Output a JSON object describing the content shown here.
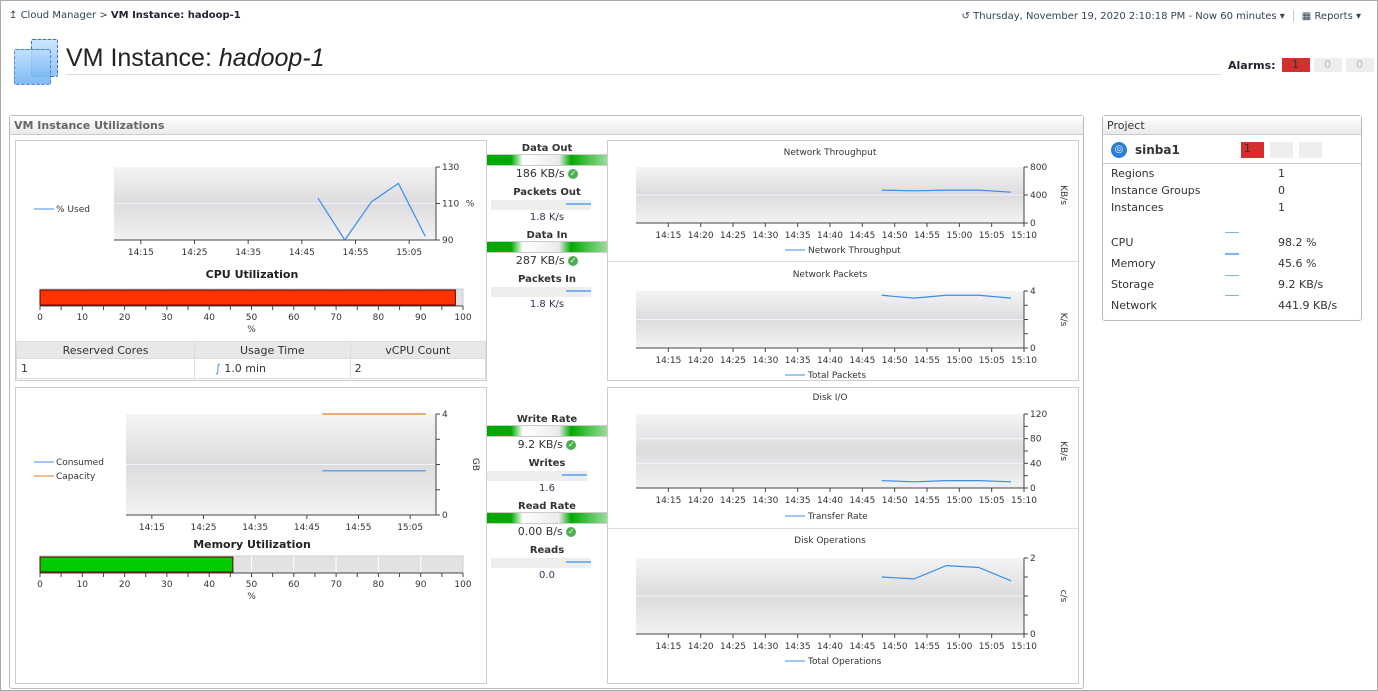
{
  "breadcrumb": {
    "parent": "Cloud Manager",
    "current": "VM Instance: hadoop-1"
  },
  "header": {
    "time_range": "Thursday, November 19, 2020 2:10:18 PM - Now 60 minutes",
    "reports": "Reports",
    "title_prefix": "VM Instance:",
    "title_name": "hadoop-1",
    "alarms_label": "Alarms:",
    "alarms": [
      "1",
      "0",
      "0"
    ]
  },
  "utilizations": {
    "title": "VM Instance Utilizations",
    "cpu": {
      "title": "CPU Utilization",
      "legend": "% Used",
      "gauge_value": 98.2,
      "gauge_unit": "%",
      "gauge_color": "#ff3300",
      "table": {
        "headers": [
          "Reserved Cores",
          "Usage Time",
          "vCPU Count"
        ],
        "values": [
          "1",
          "1.0 min",
          "2"
        ]
      }
    },
    "memory": {
      "title": "Memory Utilization",
      "legend": [
        "Consumed",
        "Capacity"
      ],
      "gauge_value": 45.6,
      "gauge_unit": "%",
      "gauge_color": "#00cc00"
    },
    "network": {
      "data_out": {
        "label": "Data Out",
        "value": "186 KB/s"
      },
      "packets_out": {
        "label": "Packets Out",
        "value": "1.8 K/s"
      },
      "data_in": {
        "label": "Data In",
        "value": "287 KB/s"
      },
      "packets_in": {
        "label": "Packets In",
        "value": "1.8 K/s"
      }
    },
    "disk": {
      "write_rate": {
        "label": "Write Rate",
        "value": "9.2 KB/s"
      },
      "writes": {
        "label": "Writes",
        "value": "1.6"
      },
      "read_rate": {
        "label": "Read Rate",
        "value": "0.00 B/s"
      },
      "reads": {
        "label": "Reads",
        "value": "0.0"
      }
    }
  },
  "project": {
    "title": "Project",
    "name": "sinba1",
    "alarms": [
      "1",
      "",
      ""
    ],
    "rows": [
      {
        "label": "Regions",
        "value": "1"
      },
      {
        "label": "Instance Groups",
        "value": "0"
      },
      {
        "label": "Instances",
        "value": "1"
      }
    ],
    "metrics": [
      {
        "label": "CPU",
        "value": "98.2 %"
      },
      {
        "label": "Memory",
        "value": "45.6 %"
      },
      {
        "label": "Storage",
        "value": "9.2 KB/s"
      },
      {
        "label": "Network",
        "value": "441.9 KB/s"
      }
    ]
  },
  "chart_data": [
    {
      "id": "cpu",
      "type": "line",
      "title": "",
      "xlim": [
        "14:10",
        "15:10"
      ],
      "xticks": [
        "14:15",
        "14:25",
        "14:35",
        "14:45",
        "14:55",
        "15:05"
      ],
      "ylim": [
        90,
        130
      ],
      "yticks": [
        90,
        110,
        130
      ],
      "ylabel": "%",
      "grid": true,
      "legend": "left",
      "series": [
        {
          "name": "% Used",
          "color": "#3b8ee8",
          "x": [
            "14:48",
            "14:53",
            "14:58",
            "15:03",
            "15:08"
          ],
          "y": [
            113,
            90,
            111,
            121,
            92
          ]
        }
      ]
    },
    {
      "id": "mem",
      "type": "line",
      "title": "",
      "xlim": [
        "14:10",
        "15:10"
      ],
      "xticks": [
        "14:15",
        "14:25",
        "14:35",
        "14:45",
        "14:55",
        "15:05"
      ],
      "ylim": [
        0,
        4
      ],
      "yticks": [
        0,
        4
      ],
      "ylabel": "GB",
      "grid": true,
      "legend": "left",
      "series": [
        {
          "name": "Consumed",
          "color": "#3b8ee8",
          "x": [
            "14:48",
            "15:08"
          ],
          "y": [
            1.75,
            1.75
          ]
        },
        {
          "name": "Capacity",
          "color": "#e07b1a",
          "x": [
            "14:48",
            "15:08"
          ],
          "y": [
            4,
            4
          ]
        }
      ]
    },
    {
      "id": "nt",
      "type": "line",
      "title": "Network Throughput",
      "xlim": [
        "14:10",
        "15:10"
      ],
      "xticks": [
        "14:15",
        "14:20",
        "14:25",
        "14:30",
        "14:35",
        "14:40",
        "14:45",
        "14:50",
        "14:55",
        "15:00",
        "15:05",
        "15:10"
      ],
      "ylim": [
        0,
        800
      ],
      "yticks": [
        0,
        400,
        800
      ],
      "ylabel": "KB/s",
      "grid": true,
      "legend": "bottom",
      "series": [
        {
          "name": "Network Throughput",
          "color": "#3b8ee8",
          "x": [
            "14:48",
            "14:53",
            "14:58",
            "15:03",
            "15:08"
          ],
          "y": [
            470,
            460,
            470,
            470,
            440
          ]
        }
      ]
    },
    {
      "id": "np",
      "type": "line",
      "title": "Network Packets",
      "xlim": [
        "14:10",
        "15:10"
      ],
      "xticks": [
        "14:15",
        "14:20",
        "14:25",
        "14:30",
        "14:35",
        "14:40",
        "14:45",
        "14:50",
        "14:55",
        "15:00",
        "15:05",
        "15:10"
      ],
      "ylim": [
        0,
        4
      ],
      "yticks": [
        0,
        4
      ],
      "ylabel": "K/s",
      "grid": true,
      "legend": "bottom",
      "series": [
        {
          "name": "Total Packets",
          "color": "#3b8ee8",
          "x": [
            "14:48",
            "14:53",
            "14:58",
            "15:03",
            "15:08"
          ],
          "y": [
            3.7,
            3.5,
            3.7,
            3.7,
            3.5
          ]
        }
      ]
    },
    {
      "id": "dio",
      "type": "line",
      "title": "Disk I/O",
      "xlim": [
        "14:10",
        "15:10"
      ],
      "xticks": [
        "14:15",
        "14:20",
        "14:25",
        "14:30",
        "14:35",
        "14:40",
        "14:45",
        "14:50",
        "14:55",
        "15:00",
        "15:05",
        "15:10"
      ],
      "ylim": [
        0,
        120
      ],
      "yticks": [
        0,
        40,
        80,
        120
      ],
      "ylabel": "KB/s",
      "grid": true,
      "legend": "bottom",
      "series": [
        {
          "name": "Transfer Rate",
          "color": "#3b8ee8",
          "x": [
            "14:48",
            "14:53",
            "14:58",
            "15:03",
            "15:08"
          ],
          "y": [
            12,
            10,
            12,
            12,
            10
          ]
        }
      ]
    },
    {
      "id": "dops",
      "type": "line",
      "title": "Disk Operations",
      "xlim": [
        "14:10",
        "15:10"
      ],
      "xticks": [
        "14:15",
        "14:20",
        "14:25",
        "14:30",
        "14:35",
        "14:40",
        "14:45",
        "14:50",
        "14:55",
        "15:00",
        "15:05",
        "15:10"
      ],
      "ylim": [
        0,
        2
      ],
      "yticks": [
        0,
        2
      ],
      "ylabel": "c/s",
      "grid": true,
      "legend": "bottom",
      "series": [
        {
          "name": "Total Operations",
          "color": "#3b8ee8",
          "x": [
            "14:48",
            "14:53",
            "14:58",
            "15:03",
            "15:08"
          ],
          "y": [
            1.5,
            1.45,
            1.8,
            1.75,
            1.4
          ]
        }
      ]
    }
  ]
}
